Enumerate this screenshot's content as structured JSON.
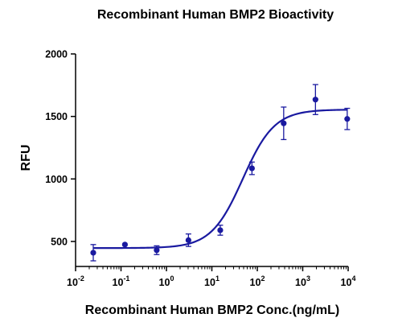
{
  "chart_data": {
    "type": "scatter",
    "title": "Recombinant Human BMP2 Bioactivity",
    "xlabel": "Recombinant Human BMP2 Conc.(ng/mL)",
    "ylabel": "RFU",
    "x_scale": "log10",
    "xlim": [
      0.01,
      10000
    ],
    "ylim": [
      300,
      2000
    ],
    "x_ticks": [
      0.01,
      0.1,
      1,
      10,
      100,
      1000,
      10000
    ],
    "x_tick_labels": [
      {
        "base": "10",
        "exp": "-2"
      },
      {
        "base": "10",
        "exp": "-1"
      },
      {
        "base": "10",
        "exp": "0"
      },
      {
        "base": "10",
        "exp": "1"
      },
      {
        "base": "10",
        "exp": "2"
      },
      {
        "base": "10",
        "exp": "3"
      },
      {
        "base": "10",
        "exp": "4"
      }
    ],
    "y_ticks": [
      500,
      1000,
      1500,
      2000
    ],
    "y_tick_labels": [
      "500",
      "1000",
      "1500",
      "2000"
    ],
    "grid": false,
    "color": "#1a1aa0",
    "series": [
      {
        "points": [
          {
            "x": 0.0245,
            "y": 410,
            "err": 65
          },
          {
            "x": 0.122,
            "y": 475,
            "err": 0
          },
          {
            "x": 0.61,
            "y": 430,
            "err": 35
          },
          {
            "x": 3.05,
            "y": 510,
            "err": 50
          },
          {
            "x": 15.3,
            "y": 590,
            "err": 40
          },
          {
            "x": 76.3,
            "y": 1085,
            "err": 50
          },
          {
            "x": 381,
            "y": 1445,
            "err": 130
          },
          {
            "x": 1907,
            "y": 1635,
            "err": 120
          },
          {
            "x": 9537,
            "y": 1480,
            "err": 85
          }
        ],
        "fit": {
          "bottom": 447,
          "top": 1555,
          "ec50": 48,
          "hill": 1.25
        }
      }
    ]
  }
}
